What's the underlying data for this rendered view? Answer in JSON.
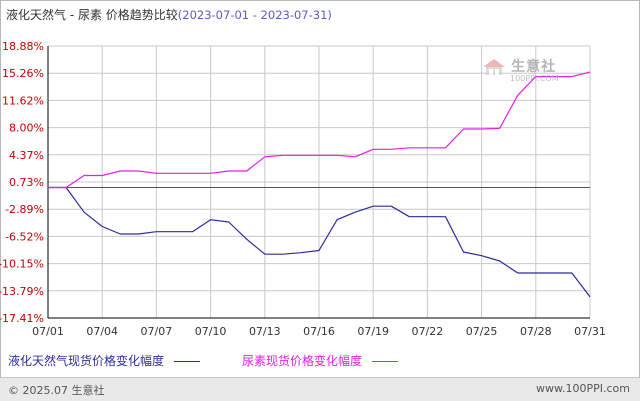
{
  "title": {
    "main": "液化天然气 - 尿素 价格趋势比较",
    "range": "(2023-07-01 - 2023-07-31)"
  },
  "watermark": {
    "cn": "生意社",
    "en": "100PPI.COM"
  },
  "footer": {
    "copyright": "© 2025.07 生意社",
    "site": "www.100PPI.com"
  },
  "colors": {
    "series1": "#2b2b9b",
    "series2": "#e020e0",
    "grid": "#c8c8c8",
    "axis": "#000000",
    "zero": "#555555"
  },
  "chart_data": {
    "type": "line",
    "ylim": [
      -17.41,
      18.88
    ],
    "y_ticks": [
      "18.88%",
      "15.26%",
      "11.62%",
      "8.00%",
      "4.37%",
      "0.73%",
      "-2.89%",
      "-6.52%",
      "-10.15%",
      "-13.79%",
      "-17.41%"
    ],
    "x_ticks": [
      "07/01",
      "07/04",
      "07/07",
      "07/10",
      "07/13",
      "07/16",
      "07/19",
      "07/22",
      "07/25",
      "07/28",
      "07/31"
    ],
    "grid": true,
    "legend_position": "bottom",
    "x": [
      "07/01",
      "07/02",
      "07/03",
      "07/04",
      "07/05",
      "07/06",
      "07/07",
      "07/08",
      "07/09",
      "07/10",
      "07/11",
      "07/12",
      "07/13",
      "07/14",
      "07/15",
      "07/16",
      "07/17",
      "07/18",
      "07/19",
      "07/20",
      "07/21",
      "07/22",
      "07/23",
      "07/24",
      "07/25",
      "07/26",
      "07/27",
      "07/28",
      "07/29",
      "07/30",
      "07/31"
    ],
    "series": [
      {
        "name": "液化天然气现货价格变化幅度",
        "color": "#2b2b9b",
        "values": [
          0,
          0,
          -3.3,
          -5.2,
          -6.2,
          -6.2,
          -5.9,
          -5.9,
          -5.9,
          -4.3,
          -4.6,
          -6.9,
          -8.9,
          -8.9,
          -8.7,
          -8.4,
          -4.3,
          -3.3,
          -2.5,
          -2.5,
          -3.9,
          -3.9,
          -3.9,
          -8.6,
          -9.1,
          -9.8,
          -11.4,
          -11.4,
          -11.4,
          -11.4,
          -14.6
        ]
      },
      {
        "name": "尿素现货价格变化幅度",
        "color": "#e020e0",
        "values": [
          0,
          0,
          1.6,
          1.6,
          2.2,
          2.2,
          1.9,
          1.9,
          1.9,
          1.9,
          2.2,
          2.2,
          4.1,
          4.3,
          4.3,
          4.3,
          4.3,
          4.1,
          5.1,
          5.1,
          5.3,
          5.3,
          5.3,
          7.8,
          7.8,
          7.9,
          12.3,
          14.8,
          14.8,
          14.8,
          15.4
        ]
      }
    ]
  }
}
